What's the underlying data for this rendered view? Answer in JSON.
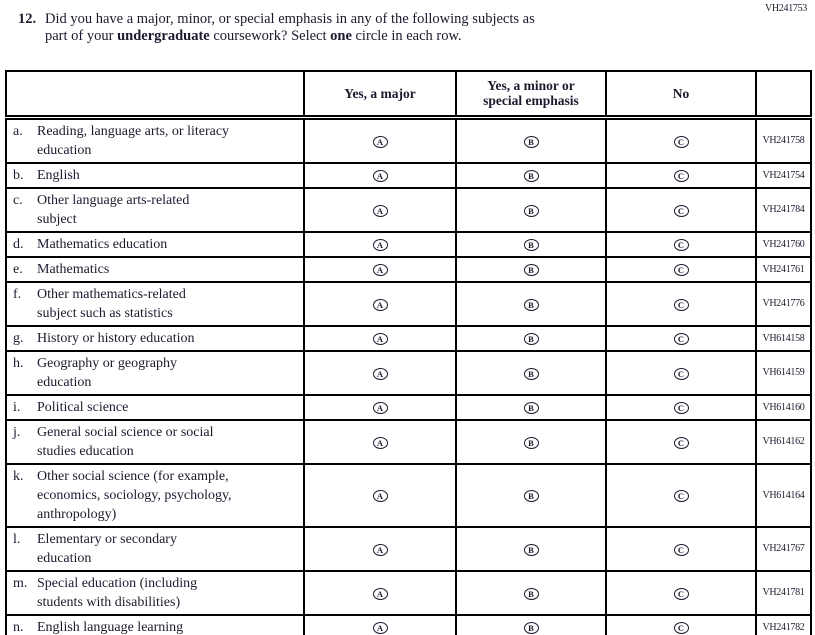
{
  "page": {
    "code_top_right": "VH241753"
  },
  "question": {
    "number": "12.",
    "line1": "Did you have a major, minor, or special emphasis in any of the following subjects as",
    "line2_pre": "part of your ",
    "line2_bold1": "undergraduate",
    "line2_mid": " coursework? Select ",
    "line2_bold2": "one",
    "line2_post": " circle in each row."
  },
  "table": {
    "headers": {
      "subject": "",
      "major": "Yes, a major",
      "minor_line1": "Yes, a minor or",
      "minor_line2": "special emphasis",
      "no": "No",
      "code": ""
    },
    "option_letters": [
      "A",
      "B",
      "C"
    ],
    "rows": [
      {
        "letter": "a.",
        "label_lines": [
          "Reading, language arts, or literacy",
          "education"
        ],
        "code": "VH241758"
      },
      {
        "letter": "b.",
        "label_lines": [
          "English"
        ],
        "code": "VH241754"
      },
      {
        "letter": "c.",
        "label_lines": [
          "Other language arts-related",
          "subject"
        ],
        "code": "VH241784"
      },
      {
        "letter": "d.",
        "label_lines": [
          "Mathematics education"
        ],
        "code": "VH241760"
      },
      {
        "letter": "e.",
        "label_lines": [
          "Mathematics"
        ],
        "code": "VH241761"
      },
      {
        "letter": "f.",
        "label_lines": [
          "Other mathematics-related",
          "subject such as statistics"
        ],
        "code": "VH241776"
      },
      {
        "letter": "g.",
        "label_lines": [
          "History or history education"
        ],
        "code": "VH614158"
      },
      {
        "letter": "h.",
        "label_lines": [
          "Geography or geography",
          "education"
        ],
        "code": "VH614159"
      },
      {
        "letter": "i.",
        "label_lines": [
          "Political science"
        ],
        "code": "VH614160"
      },
      {
        "letter": "j.",
        "label_lines": [
          "General social science or social",
          "studies education"
        ],
        "code": "VH614162"
      },
      {
        "letter": "k.",
        "label_lines": [
          "Other social science (for example,",
          "economics, sociology, psychology,",
          "anthropology)"
        ],
        "code": "VH614164"
      },
      {
        "letter": "l.",
        "label_lines": [
          "Elementary or secondary",
          "education"
        ],
        "code": "VH241767"
      },
      {
        "letter": "m.",
        "label_lines": [
          "Special education (including",
          "students with disabilities)"
        ],
        "code": "VH241781"
      },
      {
        "letter": "n.",
        "label_lines": [
          "English language learning"
        ],
        "code": "VH241782"
      }
    ]
  },
  "colors": {
    "ink": "#1b1b2e",
    "border": "#000000",
    "background": "#ffffff"
  }
}
